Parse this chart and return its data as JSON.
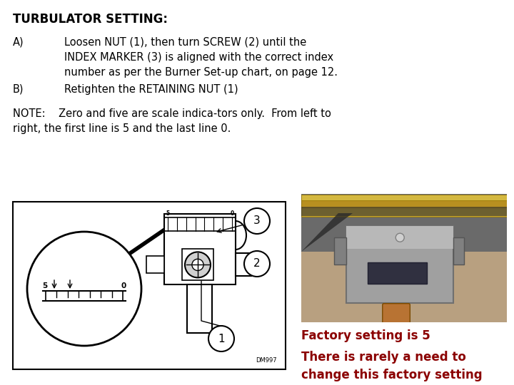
{
  "bg_color": "#ffffff",
  "title": "TURBULATOR SETTING:",
  "title_fontsize": 12,
  "section_A_label": "A)",
  "section_A_text": "Loosen NUT (1), then turn SCREW (2) until the\nINDEX MARKER (3) is aligned with the correct index\nnumber as per the Burner Set-up chart, on page 12.",
  "section_B_label": "B)",
  "section_B_text": "Retighten the RETAINING NUT (1)",
  "note_text": "NOTE:    Zero and five are scale indica-tors only.  From left to\nright, the first line is 5 and the last line 0.",
  "factory_text": "Factory setting is 5",
  "factory_color": "#8B0000",
  "factory_fontsize": 12,
  "rarely_text": "There is rarely a need to\nchange this factory setting",
  "rarely_color": "#8B0000",
  "rarely_fontsize": 12,
  "text_fontsize": 10.5,
  "note_fontsize": 10.5,
  "font_family": "DejaVu Sans"
}
